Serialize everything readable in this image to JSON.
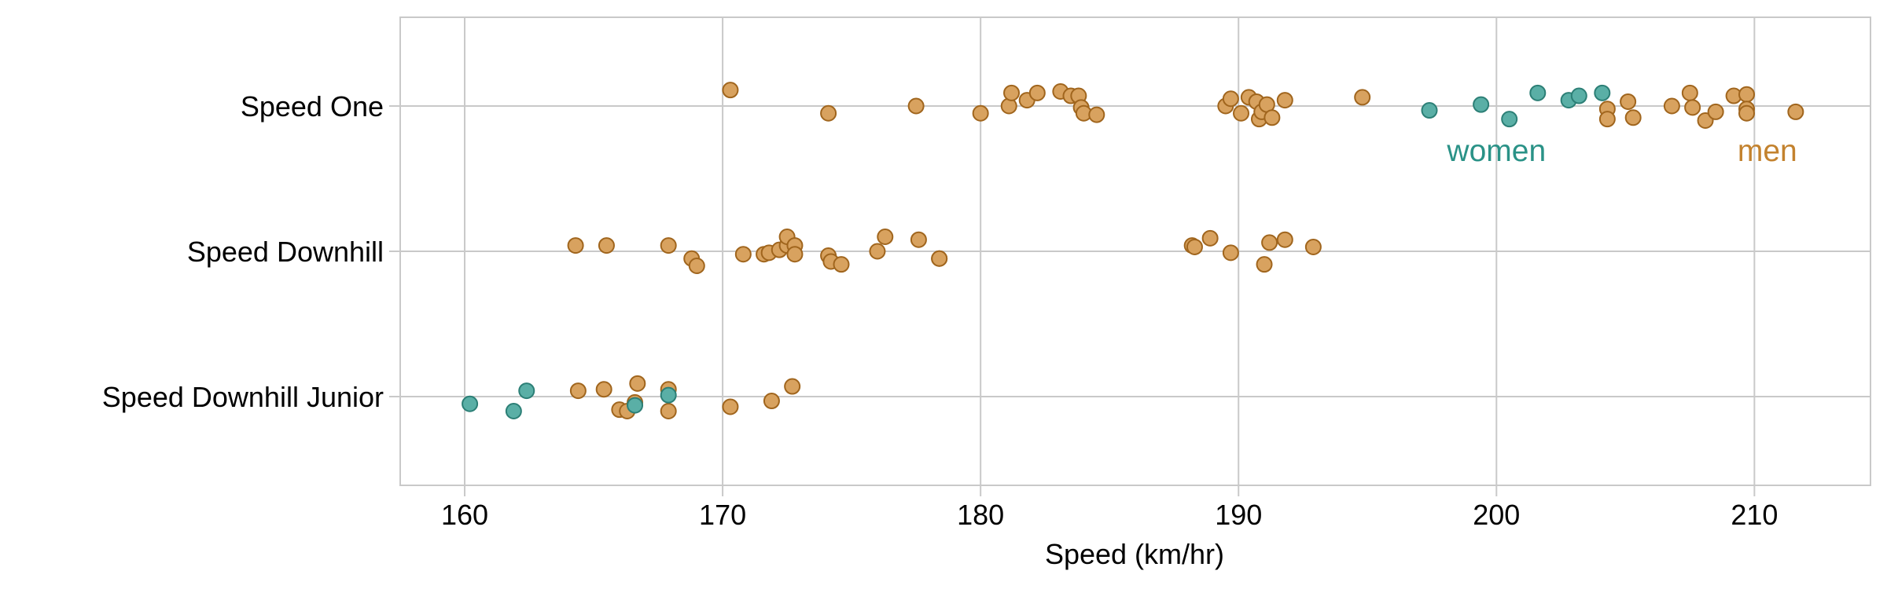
{
  "chart_data": {
    "type": "scatter",
    "title": "",
    "xlabel": "Speed (km/hr)",
    "ylabel": "",
    "xlim": [
      157.5,
      214.5
    ],
    "x_ticks": [
      160,
      170,
      180,
      190,
      200,
      210
    ],
    "categories": [
      "Speed One",
      "Speed Downhill",
      "Speed Downhill Junior"
    ],
    "grid": true,
    "legend": "none",
    "annotations": [
      {
        "text": "women",
        "series": "women",
        "x": 200,
        "category": "Speed One",
        "color": "#2a9287"
      },
      {
        "text": "men",
        "series": "men",
        "x": 210.5,
        "category": "Speed One",
        "color": "#c3822e"
      }
    ],
    "series": [
      {
        "name": "women",
        "color": "#5aafa6",
        "stroke": "#2c7f76",
        "points": [
          {
            "category": "Speed One",
            "x": 197.4,
            "jitter": 0.03
          },
          {
            "category": "Speed One",
            "x": 199.4,
            "jitter": -0.01
          },
          {
            "category": "Speed One",
            "x": 200.5,
            "jitter": 0.09
          },
          {
            "category": "Speed One",
            "x": 201.6,
            "jitter": -0.09
          },
          {
            "category": "Speed One",
            "x": 202.8,
            "jitter": -0.04
          },
          {
            "category": "Speed One",
            "x": 203.2,
            "jitter": -0.07
          },
          {
            "category": "Speed One",
            "x": 204.1,
            "jitter": -0.09
          },
          {
            "category": "Speed Downhill Junior",
            "x": 160.2,
            "jitter": 0.05
          },
          {
            "category": "Speed Downhill Junior",
            "x": 161.9,
            "jitter": 0.1
          },
          {
            "category": "Speed Downhill Junior",
            "x": 162.4,
            "jitter": -0.04
          },
          {
            "category": "Speed Downhill Junior",
            "x": 166.6,
            "jitter": 0.06
          },
          {
            "category": "Speed Downhill Junior",
            "x": 167.9,
            "jitter": -0.01
          }
        ]
      },
      {
        "name": "men",
        "color": "#d8a25f",
        "stroke": "#a0651d",
        "points": [
          {
            "category": "Speed One",
            "x": 170.3,
            "jitter": -0.11
          },
          {
            "category": "Speed One",
            "x": 174.1,
            "jitter": 0.05
          },
          {
            "category": "Speed One",
            "x": 177.5,
            "jitter": 0.0
          },
          {
            "category": "Speed One",
            "x": 180.0,
            "jitter": 0.05
          },
          {
            "category": "Speed One",
            "x": 181.1,
            "jitter": 0.0
          },
          {
            "category": "Speed One",
            "x": 181.2,
            "jitter": -0.09
          },
          {
            "category": "Speed One",
            "x": 181.8,
            "jitter": -0.04
          },
          {
            "category": "Speed One",
            "x": 182.2,
            "jitter": -0.09
          },
          {
            "category": "Speed One",
            "x": 183.1,
            "jitter": -0.1
          },
          {
            "category": "Speed One",
            "x": 183.5,
            "jitter": -0.07
          },
          {
            "category": "Speed One",
            "x": 183.8,
            "jitter": -0.07
          },
          {
            "category": "Speed One",
            "x": 183.9,
            "jitter": 0.01
          },
          {
            "category": "Speed One",
            "x": 184.0,
            "jitter": 0.05
          },
          {
            "category": "Speed One",
            "x": 184.5,
            "jitter": 0.06
          },
          {
            "category": "Speed One",
            "x": 189.5,
            "jitter": 0.0
          },
          {
            "category": "Speed One",
            "x": 189.7,
            "jitter": -0.05
          },
          {
            "category": "Speed One",
            "x": 190.1,
            "jitter": 0.05
          },
          {
            "category": "Speed One",
            "x": 190.4,
            "jitter": -0.06
          },
          {
            "category": "Speed One",
            "x": 190.7,
            "jitter": -0.03
          },
          {
            "category": "Speed One",
            "x": 190.8,
            "jitter": 0.09
          },
          {
            "category": "Speed One",
            "x": 190.9,
            "jitter": 0.04
          },
          {
            "category": "Speed One",
            "x": 191.1,
            "jitter": -0.01
          },
          {
            "category": "Speed One",
            "x": 191.3,
            "jitter": 0.08
          },
          {
            "category": "Speed One",
            "x": 191.8,
            "jitter": -0.04
          },
          {
            "category": "Speed One",
            "x": 194.8,
            "jitter": -0.06
          },
          {
            "category": "Speed One",
            "x": 204.3,
            "jitter": 0.02
          },
          {
            "category": "Speed One",
            "x": 204.3,
            "jitter": 0.09
          },
          {
            "category": "Speed One",
            "x": 205.1,
            "jitter": -0.03
          },
          {
            "category": "Speed One",
            "x": 205.3,
            "jitter": 0.08
          },
          {
            "category": "Speed One",
            "x": 206.8,
            "jitter": 0.0
          },
          {
            "category": "Speed One",
            "x": 207.5,
            "jitter": -0.09
          },
          {
            "category": "Speed One",
            "x": 207.6,
            "jitter": 0.01
          },
          {
            "category": "Speed One",
            "x": 208.1,
            "jitter": 0.1
          },
          {
            "category": "Speed One",
            "x": 208.5,
            "jitter": 0.04
          },
          {
            "category": "Speed One",
            "x": 209.2,
            "jitter": -0.07
          },
          {
            "category": "Speed One",
            "x": 209.7,
            "jitter": -0.08
          },
          {
            "category": "Speed One",
            "x": 209.7,
            "jitter": 0.02
          },
          {
            "category": "Speed One",
            "x": 209.7,
            "jitter": 0.05
          },
          {
            "category": "Speed One",
            "x": 211.6,
            "jitter": 0.04
          },
          {
            "category": "Speed Downhill",
            "x": 164.3,
            "jitter": -0.04
          },
          {
            "category": "Speed Downhill",
            "x": 165.5,
            "jitter": -0.04
          },
          {
            "category": "Speed Downhill",
            "x": 167.9,
            "jitter": -0.04
          },
          {
            "category": "Speed Downhill",
            "x": 168.8,
            "jitter": 0.05
          },
          {
            "category": "Speed Downhill",
            "x": 169.0,
            "jitter": 0.1
          },
          {
            "category": "Speed Downhill",
            "x": 170.8,
            "jitter": 0.02
          },
          {
            "category": "Speed Downhill",
            "x": 171.6,
            "jitter": 0.02
          },
          {
            "category": "Speed Downhill",
            "x": 171.8,
            "jitter": 0.01
          },
          {
            "category": "Speed Downhill",
            "x": 172.2,
            "jitter": -0.01
          },
          {
            "category": "Speed Downhill",
            "x": 172.5,
            "jitter": -0.04
          },
          {
            "category": "Speed Downhill",
            "x": 172.5,
            "jitter": -0.1
          },
          {
            "category": "Speed Downhill",
            "x": 172.8,
            "jitter": -0.04
          },
          {
            "category": "Speed Downhill",
            "x": 172.8,
            "jitter": 0.02
          },
          {
            "category": "Speed Downhill",
            "x": 174.1,
            "jitter": 0.03
          },
          {
            "category": "Speed Downhill",
            "x": 174.2,
            "jitter": 0.07
          },
          {
            "category": "Speed Downhill",
            "x": 174.6,
            "jitter": 0.09
          },
          {
            "category": "Speed Downhill",
            "x": 176.0,
            "jitter": 0.0
          },
          {
            "category": "Speed Downhill",
            "x": 176.3,
            "jitter": -0.1
          },
          {
            "category": "Speed Downhill",
            "x": 177.6,
            "jitter": -0.08
          },
          {
            "category": "Speed Downhill",
            "x": 178.4,
            "jitter": 0.05
          },
          {
            "category": "Speed Downhill",
            "x": 178.4,
            "jitter": 0.05
          },
          {
            "category": "Speed Downhill",
            "x": 188.2,
            "jitter": -0.04
          },
          {
            "category": "Speed Downhill",
            "x": 188.3,
            "jitter": -0.03
          },
          {
            "category": "Speed Downhill",
            "x": 188.9,
            "jitter": -0.09
          },
          {
            "category": "Speed Downhill",
            "x": 189.7,
            "jitter": 0.01
          },
          {
            "category": "Speed Downhill",
            "x": 191.0,
            "jitter": 0.09
          },
          {
            "category": "Speed Downhill",
            "x": 191.2,
            "jitter": -0.06
          },
          {
            "category": "Speed Downhill",
            "x": 191.8,
            "jitter": -0.08
          },
          {
            "category": "Speed Downhill",
            "x": 192.9,
            "jitter": -0.03
          },
          {
            "category": "Speed Downhill Junior",
            "x": 164.4,
            "jitter": -0.04
          },
          {
            "category": "Speed Downhill Junior",
            "x": 165.4,
            "jitter": -0.05
          },
          {
            "category": "Speed Downhill Junior",
            "x": 166.0,
            "jitter": 0.09
          },
          {
            "category": "Speed Downhill Junior",
            "x": 166.3,
            "jitter": 0.1
          },
          {
            "category": "Speed Downhill Junior",
            "x": 166.6,
            "jitter": 0.04
          },
          {
            "category": "Speed Downhill Junior",
            "x": 166.7,
            "jitter": -0.09
          },
          {
            "category": "Speed Downhill Junior",
            "x": 167.9,
            "jitter": -0.05
          },
          {
            "category": "Speed Downhill Junior",
            "x": 167.9,
            "jitter": 0.1
          },
          {
            "category": "Speed Downhill Junior",
            "x": 170.3,
            "jitter": 0.07
          },
          {
            "category": "Speed Downhill Junior",
            "x": 171.9,
            "jitter": 0.03
          },
          {
            "category": "Speed Downhill Junior",
            "x": 172.7,
            "jitter": -0.07
          }
        ]
      }
    ]
  }
}
